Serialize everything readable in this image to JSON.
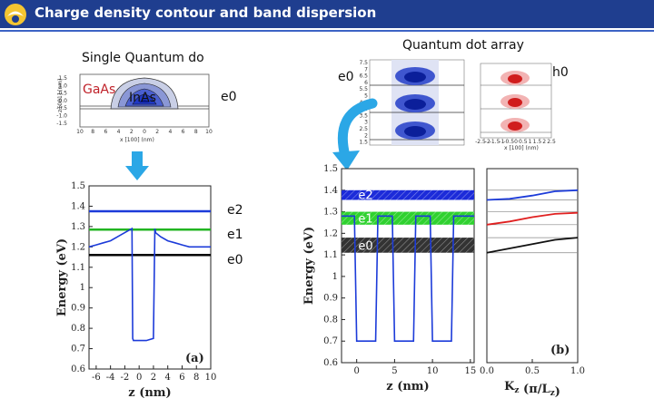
{
  "header": {
    "title": "Charge density contour and band dispersion",
    "accent_color": "#1f3e8f",
    "logo_icon": "institution-logo-icon"
  },
  "single_dot": {
    "heading": "Single Quantum do",
    "material_outer": "GaAs",
    "material_inner": "InAs",
    "state_label": "e0",
    "contour_ylabel": "z [001] (nm)",
    "contour_xlabel": "x [100] (nm)",
    "contour_yticks": [
      "1.5",
      "1.0",
      "0.5",
      "0.0",
      "-0.5",
      "-1.0",
      "-1.5"
    ],
    "contour_xticks": [
      "10",
      "8",
      "6",
      "4",
      "2",
      "0",
      "2",
      "4",
      "6",
      "8",
      "10"
    ]
  },
  "dot_array": {
    "heading": "Quantum dot array",
    "state_e0": "e0",
    "state_h0": "h0",
    "panel_yticks": [
      "7.5",
      "7",
      "6.5",
      "6",
      "5.5",
      "5",
      "4.5",
      "4",
      "3.5",
      "3",
      "2.5",
      "2",
      "1.5"
    ],
    "panel_xticks": [
      "-2.5",
      "-2",
      "-1.5",
      "-1",
      "-0.5",
      "0",
      "0.5",
      "1",
      "1.5",
      "2",
      "2.5"
    ],
    "h0_xlabel": "x [100] (nm)"
  },
  "plot_a": {
    "panel": "(a)",
    "ylabel": "Energy (eV)",
    "xlabel": "z (nm)",
    "yticks": [
      "1.5",
      "1.4",
      "1.3",
      "1.2",
      "1.1",
      "1",
      "0.9",
      "0.8",
      "0.7",
      "0.6"
    ],
    "xticks": [
      "-6",
      "-4",
      "-2",
      "0",
      "2",
      "4",
      "6",
      "8",
      "10"
    ],
    "level_labels": [
      "e2",
      "e1",
      "e0"
    ]
  },
  "plot_b": {
    "panel": "(b)",
    "ylabel": "Energy (eV)",
    "xlabel": "z (nm)",
    "xlabel_k": "Kz (π/Lz)",
    "xlabel_k_base": "K",
    "xlabel_k_sub": "z",
    "xlabel_k_rest": "(π/L",
    "xlabel_k_sub2": "z",
    "xlabel_k_end": ")",
    "yticks": [
      "1.5",
      "1.4",
      "1.3",
      "1.2",
      "1.1",
      "1",
      "0.9",
      "0.8",
      "0.7",
      "0.6"
    ],
    "xticks": [
      "0",
      "5",
      "10",
      "15"
    ],
    "kticks": [
      "0.0",
      "0.5",
      "1.0"
    ],
    "band_labels": [
      "e2",
      "e1",
      "e0"
    ]
  },
  "chart_data": [
    {
      "type": "line",
      "panel": "(a)",
      "xlabel": "z (nm)",
      "ylabel": "Energy (eV)",
      "xlim": [
        -7,
        10
      ],
      "ylim": [
        0.6,
        1.5
      ],
      "levels": [
        {
          "name": "e2",
          "energy": 1.375,
          "color": "#1c3bd9"
        },
        {
          "name": "e1",
          "energy": 1.285,
          "color": "#22b522"
        },
        {
          "name": "e0",
          "energy": 1.16,
          "color": "#000000"
        }
      ],
      "potential_profile": {
        "color": "#1c3bd9",
        "x": [
          -7,
          -6,
          -5,
          -4,
          -3,
          -2,
          -1,
          -0.9,
          -0.8,
          0,
          1,
          2,
          2.2,
          2.3,
          3,
          4,
          5,
          6,
          7,
          8,
          9,
          10
        ],
        "y": [
          1.2,
          1.21,
          1.22,
          1.23,
          1.25,
          1.27,
          1.29,
          0.75,
          0.74,
          0.74,
          0.74,
          0.75,
          1.29,
          1.27,
          1.25,
          1.23,
          1.22,
          1.21,
          1.2,
          1.2,
          1.2,
          1.2
        ]
      }
    },
    {
      "type": "line",
      "panel": "(b)",
      "xlabel": "z (nm)",
      "ylabel": "Energy (eV)",
      "xlim": [
        -2,
        15.5
      ],
      "ylim": [
        0.6,
        1.5
      ],
      "minibands": [
        {
          "name": "e2",
          "range": [
            1.355,
            1.4
          ],
          "color": "#1c2bd9"
        },
        {
          "name": "e1",
          "range": [
            1.24,
            1.3
          ],
          "color": "#2fd12f"
        },
        {
          "name": "e0",
          "range": [
            1.11,
            1.18
          ],
          "color": "#333333"
        }
      ],
      "dot_wells_z": [
        [
          0,
          2.5
        ],
        [
          5,
          7.5
        ],
        [
          10,
          12.5
        ]
      ],
      "well_bottom": 0.7,
      "barrier_top": 1.28
    },
    {
      "type": "line",
      "panel": "(b) dispersion",
      "xlabel": "Kz (π/Lz)",
      "xlim": [
        0,
        1
      ],
      "ylim": [
        0.6,
        1.5
      ],
      "series": [
        {
          "name": "e2",
          "color": "#1c3bd9",
          "x": [
            0,
            0.25,
            0.5,
            0.75,
            1
          ],
          "y": [
            1.355,
            1.36,
            1.375,
            1.395,
            1.4
          ]
        },
        {
          "name": "e1",
          "color": "#e02020",
          "x": [
            0,
            0.25,
            0.5,
            0.75,
            1
          ],
          "y": [
            1.24,
            1.255,
            1.275,
            1.29,
            1.295
          ]
        },
        {
          "name": "e0",
          "color": "#111111",
          "x": [
            0,
            0.25,
            0.5,
            0.75,
            1
          ],
          "y": [
            1.11,
            1.13,
            1.15,
            1.17,
            1.18
          ]
        }
      ]
    }
  ]
}
